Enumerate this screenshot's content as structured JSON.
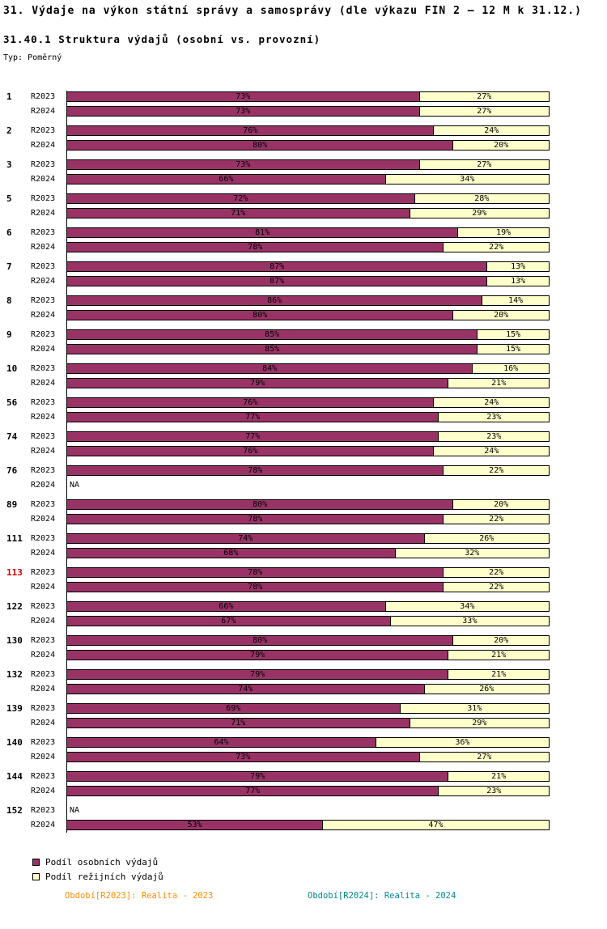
{
  "title": "31. Výdaje na výkon státní správy a samosprávy (dle výkazu FIN 2 – 12 M k 31.12.)",
  "subtitle": "31.40.1 Struktura výdajů (osobní vs. provozní)",
  "type_label": "Typ: Poměrný",
  "legend": [
    {
      "label": "Podíl osobních výdajů",
      "color": "#993366"
    },
    {
      "label": "Podíl režijních výdajů",
      "color": "#FFFFCC"
    }
  ],
  "footer": [
    {
      "label": "Období[R2023]: Realita - 2023",
      "color": "#FF8C00"
    },
    {
      "label": "Období[R2024]: Realita - 2024",
      "color": "#008B8B"
    }
  ],
  "chart_data": {
    "type": "bar",
    "orientation": "horizontal",
    "stacked": true,
    "unit": "%",
    "xlim": [
      0,
      100
    ],
    "series": [
      {
        "name": "Podíl osobních výdajů",
        "color": "#993366"
      },
      {
        "name": "Podíl režijních výdajů",
        "color": "#FFFFCC"
      }
    ],
    "missing_value_text": "NA",
    "groups": [
      {
        "id": "1",
        "highlight": false,
        "rows": [
          {
            "period": "R2023",
            "personal": 73,
            "overhead": 27
          },
          {
            "period": "R2024",
            "personal": 73,
            "overhead": 27
          }
        ]
      },
      {
        "id": "2",
        "highlight": false,
        "rows": [
          {
            "period": "R2023",
            "personal": 76,
            "overhead": 24
          },
          {
            "period": "R2024",
            "personal": 80,
            "overhead": 20
          }
        ]
      },
      {
        "id": "3",
        "highlight": false,
        "rows": [
          {
            "period": "R2023",
            "personal": 73,
            "overhead": 27
          },
          {
            "period": "R2024",
            "personal": 66,
            "overhead": 34
          }
        ]
      },
      {
        "id": "5",
        "highlight": false,
        "rows": [
          {
            "period": "R2023",
            "personal": 72,
            "overhead": 28
          },
          {
            "period": "R2024",
            "personal": 71,
            "overhead": 29
          }
        ]
      },
      {
        "id": "6",
        "highlight": false,
        "rows": [
          {
            "period": "R2023",
            "personal": 81,
            "overhead": 19
          },
          {
            "period": "R2024",
            "personal": 78,
            "overhead": 22
          }
        ]
      },
      {
        "id": "7",
        "highlight": false,
        "rows": [
          {
            "period": "R2023",
            "personal": 87,
            "overhead": 13
          },
          {
            "period": "R2024",
            "personal": 87,
            "overhead": 13
          }
        ]
      },
      {
        "id": "8",
        "highlight": false,
        "rows": [
          {
            "period": "R2023",
            "personal": 86,
            "overhead": 14
          },
          {
            "period": "R2024",
            "personal": 80,
            "overhead": 20
          }
        ]
      },
      {
        "id": "9",
        "highlight": false,
        "rows": [
          {
            "period": "R2023",
            "personal": 85,
            "overhead": 15
          },
          {
            "period": "R2024",
            "personal": 85,
            "overhead": 15
          }
        ]
      },
      {
        "id": "10",
        "highlight": false,
        "rows": [
          {
            "period": "R2023",
            "personal": 84,
            "overhead": 16
          },
          {
            "period": "R2024",
            "personal": 79,
            "overhead": 21
          }
        ]
      },
      {
        "id": "56",
        "highlight": false,
        "rows": [
          {
            "period": "R2023",
            "personal": 76,
            "overhead": 24
          },
          {
            "period": "R2024",
            "personal": 77,
            "overhead": 23
          }
        ]
      },
      {
        "id": "74",
        "highlight": false,
        "rows": [
          {
            "period": "R2023",
            "personal": 77,
            "overhead": 23
          },
          {
            "period": "R2024",
            "personal": 76,
            "overhead": 24
          }
        ]
      },
      {
        "id": "76",
        "highlight": false,
        "rows": [
          {
            "period": "R2023",
            "personal": 78,
            "overhead": 22
          },
          {
            "period": "R2024",
            "na": "NA"
          }
        ]
      },
      {
        "id": "89",
        "highlight": false,
        "rows": [
          {
            "period": "R2023",
            "personal": 80,
            "overhead": 20
          },
          {
            "period": "R2024",
            "personal": 78,
            "overhead": 22
          }
        ]
      },
      {
        "id": "111",
        "highlight": false,
        "rows": [
          {
            "period": "R2023",
            "personal": 74,
            "overhead": 26
          },
          {
            "period": "R2024",
            "personal": 68,
            "overhead": 32
          }
        ]
      },
      {
        "id": "113",
        "highlight": true,
        "rows": [
          {
            "period": "R2023",
            "personal": 78,
            "overhead": 22
          },
          {
            "period": "R2024",
            "personal": 78,
            "overhead": 22
          }
        ]
      },
      {
        "id": "122",
        "highlight": false,
        "rows": [
          {
            "period": "R2023",
            "personal": 66,
            "overhead": 34
          },
          {
            "period": "R2024",
            "personal": 67,
            "overhead": 33
          }
        ]
      },
      {
        "id": "130",
        "highlight": false,
        "rows": [
          {
            "period": "R2023",
            "personal": 80,
            "overhead": 20
          },
          {
            "period": "R2024",
            "personal": 79,
            "overhead": 21
          }
        ]
      },
      {
        "id": "132",
        "highlight": false,
        "rows": [
          {
            "period": "R2023",
            "personal": 79,
            "overhead": 21
          },
          {
            "period": "R2024",
            "personal": 74,
            "overhead": 26
          }
        ]
      },
      {
        "id": "139",
        "highlight": false,
        "rows": [
          {
            "period": "R2023",
            "personal": 69,
            "overhead": 31
          },
          {
            "period": "R2024",
            "personal": 71,
            "overhead": 29
          }
        ]
      },
      {
        "id": "140",
        "highlight": false,
        "rows": [
          {
            "period": "R2023",
            "personal": 64,
            "overhead": 36
          },
          {
            "period": "R2024",
            "personal": 73,
            "overhead": 27
          }
        ]
      },
      {
        "id": "144",
        "highlight": false,
        "rows": [
          {
            "period": "R2023",
            "personal": 79,
            "overhead": 21
          },
          {
            "period": "R2024",
            "personal": 77,
            "overhead": 23
          }
        ]
      },
      {
        "id": "152",
        "highlight": false,
        "rows": [
          {
            "period": "R2023",
            "na": "NA"
          },
          {
            "period": "R2024",
            "personal": 53,
            "overhead": 47
          }
        ]
      }
    ]
  }
}
